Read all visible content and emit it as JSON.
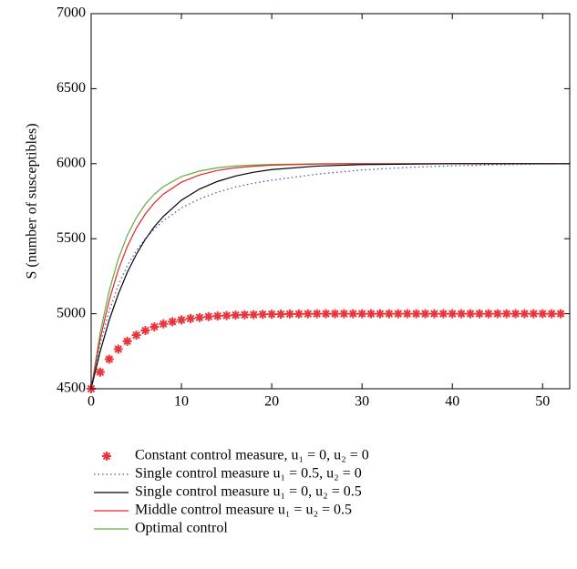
{
  "chart_data": {
    "type": "line",
    "ylabel": "S (number of susceptibles)",
    "xlim": [
      0,
      53
    ],
    "ylim": [
      4500,
      7000
    ],
    "xticks": [
      0,
      10,
      20,
      30,
      40,
      50
    ],
    "yticks": [
      4500,
      5000,
      5500,
      6000,
      6500,
      7000
    ],
    "grid": false,
    "legend": "bottom",
    "series": [
      {
        "name": "Constant control measure, u₁ = 0, u₂ = 0",
        "color": "#e8343a",
        "style": "asterisk",
        "x": [
          0,
          1,
          2,
          3,
          4,
          5,
          6,
          7,
          8,
          9,
          10,
          11,
          12,
          13,
          14,
          15,
          16,
          17,
          18,
          19,
          20,
          21,
          22,
          23,
          24,
          25,
          26,
          27,
          28,
          29,
          30,
          31,
          32,
          33,
          34,
          35,
          36,
          37,
          38,
          39,
          40,
          41,
          42,
          43,
          44,
          45,
          46,
          47,
          48,
          49,
          50,
          51,
          52
        ],
        "values": [
          4500,
          4611,
          4697,
          4764,
          4816,
          4857,
          4888,
          4913,
          4932,
          4947,
          4959,
          4968,
          4975,
          4981,
          4985,
          4988,
          4991,
          4993,
          4994,
          4996,
          4997,
          4997,
          4998,
          4998,
          4999,
          5000,
          5000,
          5000,
          5000,
          5000,
          5000,
          5000,
          5000,
          5000,
          5000,
          5000,
          5000,
          5000,
          5000,
          5000,
          5000,
          5000,
          5000,
          5000,
          5000,
          5000,
          5000,
          5000,
          5000,
          5000,
          5000,
          5000,
          5000
        ]
      },
      {
        "name": "Single control measure u₁ = 0.5, u₂ = 0",
        "color": "#3a4fb0",
        "style": "dotted",
        "x": [
          0,
          1,
          2,
          3,
          4,
          5,
          6,
          7,
          8,
          10,
          12,
          14,
          16,
          18,
          20,
          25,
          30,
          35,
          40,
          45,
          50,
          53
        ],
        "values": [
          4500,
          4800,
          5020,
          5190,
          5320,
          5420,
          5500,
          5565,
          5620,
          5705,
          5765,
          5810,
          5845,
          5870,
          5890,
          5930,
          5958,
          5975,
          5986,
          5993,
          5997,
          5998
        ]
      },
      {
        "name": "Single control measure u₁ = 0, u₂ = 0.5",
        "color": "#000000",
        "style": "solid",
        "x": [
          0,
          1,
          2,
          3,
          4,
          5,
          6,
          7,
          8,
          10,
          12,
          14,
          16,
          18,
          20,
          25,
          30,
          35,
          40,
          45,
          50,
          53
        ],
        "values": [
          4500,
          4749,
          4957,
          5130,
          5275,
          5395,
          5496,
          5580,
          5649,
          5757,
          5831,
          5882,
          5918,
          5943,
          5961,
          5984,
          5994,
          5997,
          6000,
          6000,
          6000,
          6000
        ]
      },
      {
        "name": "Middle control measure u₁ = u₂ = 0.5",
        "color": "#e8242a",
        "style": "solid",
        "x": [
          0,
          1,
          2,
          3,
          4,
          5,
          6,
          7,
          8,
          10,
          12,
          14,
          16,
          18,
          20,
          25,
          30,
          35,
          40,
          45,
          50,
          53
        ],
        "values": [
          4500,
          4832,
          5090,
          5291,
          5448,
          5570,
          5665,
          5739,
          5797,
          5877,
          5925,
          5955,
          5973,
          5983,
          5990,
          5998,
          6000,
          6000,
          6000,
          6000,
          6000,
          6000
        ]
      },
      {
        "name": "Optimal control",
        "color": "#5db043",
        "style": "solid",
        "x": [
          0,
          1,
          2,
          3,
          4,
          5,
          6,
          7,
          8,
          10,
          12,
          14,
          16,
          18,
          20,
          25,
          30,
          35,
          40,
          45,
          50,
          53
        ],
        "values": [
          4500,
          4873,
          5153,
          5364,
          5522,
          5640,
          5730,
          5797,
          5847,
          5914,
          5951,
          5973,
          5985,
          5991,
          5995,
          5999,
          6000,
          6000,
          6000,
          6000,
          6000,
          6000
        ]
      }
    ]
  }
}
